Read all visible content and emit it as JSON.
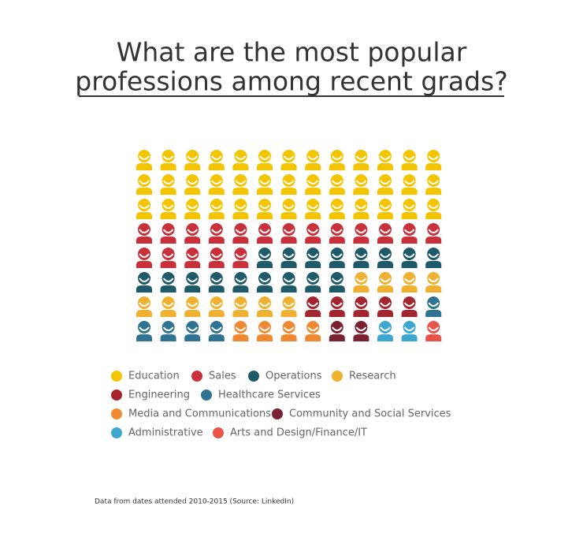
{
  "chart_data": {
    "type": "waffle",
    "title_lines": [
      "What are the most popular",
      "professions among recent grads?"
    ],
    "footnote": "Data from dates attended 2010-2015 (Source: LinkedIn)",
    "columns": 13,
    "categories": [
      "Education",
      "Sales",
      "Operations",
      "Research",
      "Engineering",
      "Healthcare Services",
      "Media and Communications",
      "Community and Social Services",
      "Administrative",
      "Arts and Design/Finance/IT"
    ],
    "values": [
      39,
      18,
      17,
      11,
      5,
      5,
      4,
      2,
      2,
      1
    ],
    "colors": [
      "#f5c400",
      "#c9303a",
      "#1f5a6b",
      "#f0b030",
      "#a3262e",
      "#2e7391",
      "#f08a32",
      "#7a2232",
      "#3ea7cf",
      "#e9534a"
    ]
  }
}
